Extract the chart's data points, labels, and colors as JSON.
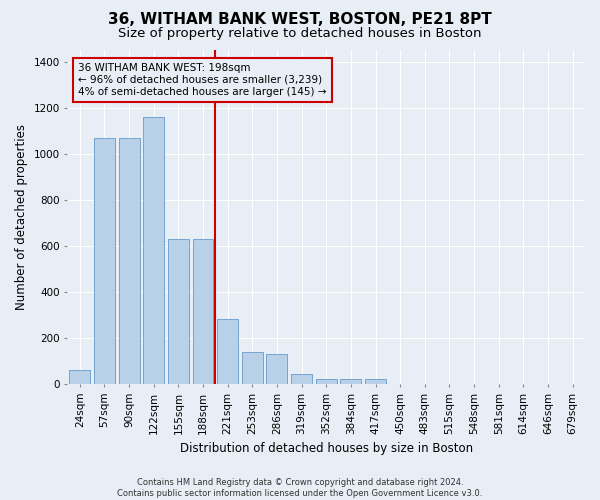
{
  "title_line1": "36, WITHAM BANK WEST, BOSTON, PE21 8PT",
  "title_line2": "Size of property relative to detached houses in Boston",
  "xlabel": "Distribution of detached houses by size in Boston",
  "ylabel": "Number of detached properties",
  "footnote": "Contains HM Land Registry data © Crown copyright and database right 2024.\nContains public sector information licensed under the Open Government Licence v3.0.",
  "categories": [
    "24sqm",
    "57sqm",
    "90sqm",
    "122sqm",
    "155sqm",
    "188sqm",
    "221sqm",
    "253sqm",
    "286sqm",
    "319sqm",
    "352sqm",
    "384sqm",
    "417sqm",
    "450sqm",
    "483sqm",
    "515sqm",
    "548sqm",
    "581sqm",
    "614sqm",
    "646sqm",
    "679sqm"
  ],
  "values": [
    60,
    1070,
    1070,
    1160,
    630,
    630,
    280,
    140,
    130,
    45,
    20,
    20,
    20,
    0,
    0,
    0,
    0,
    0,
    0,
    0,
    0
  ],
  "bar_color": "#b8d0e8",
  "bar_edge_color": "#6699cc",
  "vline_index": 6.0,
  "vline_color": "#cc0000",
  "annotation_text": "36 WITHAM BANK WEST: 198sqm\n← 96% of detached houses are smaller (3,239)\n4% of semi-detached houses are larger (145) →",
  "annotation_box_color": "#cc0000",
  "ylim": [
    0,
    1450
  ],
  "yticks": [
    0,
    200,
    400,
    600,
    800,
    1000,
    1200,
    1400
  ],
  "bg_color": "#e8eef5",
  "grid_color": "#ffffff",
  "title1_fontsize": 11,
  "title2_fontsize": 9.5,
  "tick_fontsize": 7.5,
  "label_fontsize": 8.5,
  "annotation_fontsize": 7.5
}
